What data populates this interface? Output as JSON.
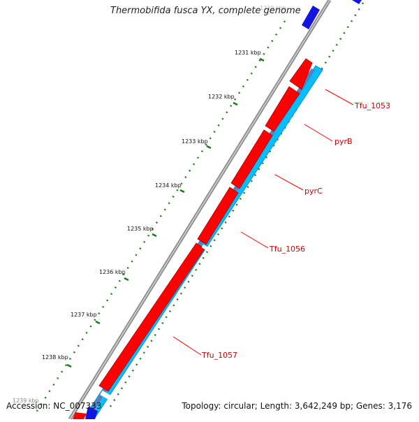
{
  "title": "Thermobifida fusca YX, complete genome",
  "footer": {
    "accession": "Accession: NC_007333",
    "stats": "Topology: circular; Length: 3,642,249 bp; Genes: 3,176"
  },
  "scale_labels": [
    "1230 kbp",
    "1231 kbp",
    "1232 kbp",
    "1233 kbp",
    "1234 kbp",
    "1235 kbp",
    "1236 kbp",
    "1237 kbp",
    "1238 kbp",
    "1239 kbp"
  ],
  "gene_labels": [
    "Tfu_1053",
    "pyrB",
    "pyrC",
    "Tfu_1056",
    "Tfu_1057"
  ],
  "colors": {
    "backbone": "#8a8a8a",
    "forward_gene": "#ff0000",
    "reverse_gene": "#00bfff",
    "blast_band": "#4f83c6",
    "tick": "#1e7a1e",
    "label_line": "#ff0000",
    "label_text": "#cc0000",
    "edge_feature": "#1414e0"
  }
}
